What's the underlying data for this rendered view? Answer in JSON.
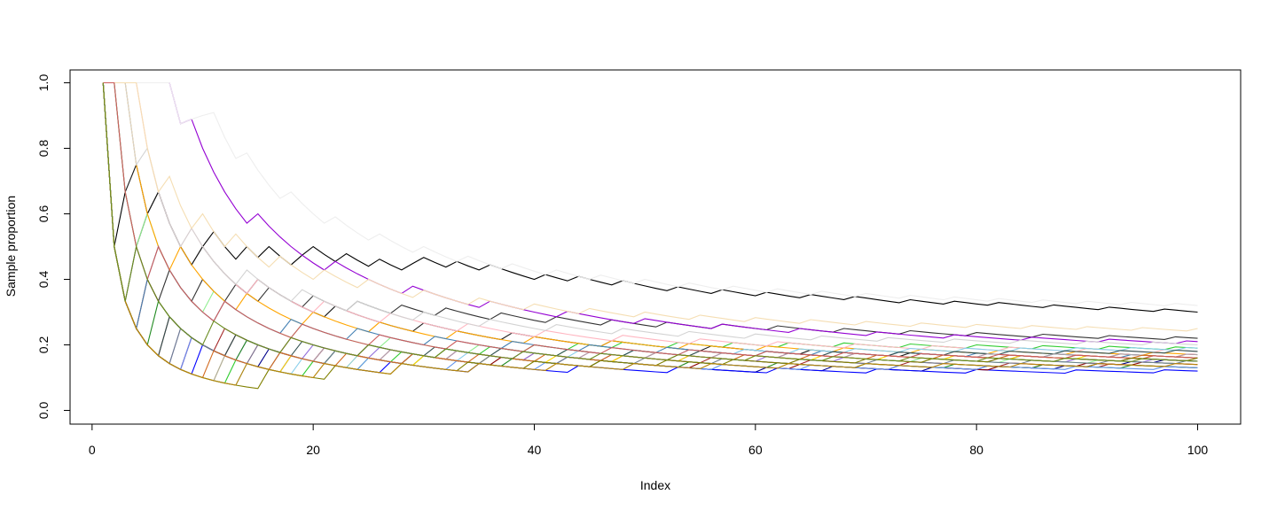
{
  "chart_data": {
    "type": "line",
    "title": "",
    "xlabel": "Index",
    "ylabel": "Sample proportion",
    "xlim": [
      1,
      100
    ],
    "ylim": [
      0,
      1
    ],
    "x_ticks": [
      0,
      20,
      40,
      60,
      80,
      100
    ],
    "y_ticks": [
      0.0,
      0.2,
      0.4,
      0.6,
      0.8,
      1.0
    ],
    "x_tick_labels": [
      "0",
      "20",
      "40",
      "60",
      "80",
      "100"
    ],
    "y_tick_labels": [
      "0.0",
      "0.2",
      "0.4",
      "0.6",
      "0.8",
      "1.0"
    ],
    "grid": false,
    "legend": "none",
    "x": [
      1,
      2,
      3,
      4,
      5,
      6,
      7,
      8,
      9,
      10,
      11,
      12,
      13,
      14,
      15,
      16,
      17,
      18,
      19,
      20,
      21,
      22,
      23,
      24,
      25,
      26,
      27,
      28,
      29,
      30,
      31,
      32,
      33,
      34,
      35,
      36,
      37,
      38,
      39,
      40,
      41,
      42,
      43,
      44,
      45,
      46,
      47,
      48,
      49,
      50,
      51,
      52,
      53,
      54,
      55,
      56,
      57,
      58,
      59,
      60,
      61,
      62,
      63,
      64,
      65,
      66,
      67,
      68,
      69,
      70,
      71,
      72,
      73,
      74,
      75,
      76,
      77,
      78,
      79,
      80,
      81,
      82,
      83,
      84,
      85,
      86,
      87,
      88,
      89,
      90,
      91,
      92,
      93,
      94,
      95,
      96,
      97,
      98,
      99,
      100
    ],
    "series": [
      {
        "color": "#000000",
        "success_indices": [
          1,
          3,
          5,
          6,
          10,
          11,
          14,
          16,
          19,
          20,
          23,
          26,
          29,
          30,
          33,
          36,
          41,
          44,
          48,
          53,
          57,
          61,
          65,
          69,
          74,
          78,
          82,
          87,
          92,
          97
        ]
      },
      {
        "color": "#1a1a1a",
        "success_indices": [
          1,
          2,
          4,
          6,
          10,
          15,
          22,
          30,
          38,
          47,
          56,
          65,
          74,
          84,
          94
        ]
      },
      {
        "color": "#333333",
        "success_indices": [
          1,
          4,
          7,
          10,
          13,
          16,
          20,
          24,
          28,
          32,
          37,
          42,
          47,
          52,
          57,
          62,
          68,
          74,
          80,
          86,
          92,
          98
        ]
      },
      {
        "color": "#00008b",
        "success_indices": [
          1,
          9,
          16,
          22,
          29,
          36,
          43,
          61,
          67,
          76,
          81,
          88,
          91,
          94,
          97
        ]
      },
      {
        "color": "#0000ff",
        "success_indices": [
          1,
          10,
          18,
          27,
          35,
          44,
          53,
          62,
          71,
          80,
          89,
          97
        ]
      },
      {
        "color": "#8b0000",
        "success_indices": [
          1,
          5,
          13,
          21,
          29,
          37,
          46,
          55,
          64,
          73,
          82,
          86,
          90,
          95
        ]
      },
      {
        "color": "#a52a2a",
        "success_indices": [
          1,
          7,
          12,
          18,
          25,
          32,
          40,
          48,
          56,
          65,
          74,
          83,
          92
        ]
      },
      {
        "color": "#9400d3",
        "success_indices": [
          1,
          2,
          3,
          4,
          5,
          6,
          7,
          9,
          15,
          22,
          29,
          36,
          43,
          50,
          57,
          64,
          71,
          78,
          85,
          92,
          99
        ]
      },
      {
        "color": "#9370db",
        "success_indices": [
          1,
          8,
          14,
          20,
          26,
          33,
          40,
          47,
          54,
          61,
          68,
          75,
          82,
          89,
          96
        ]
      },
      {
        "color": "#228b22",
        "success_indices": [
          1,
          6,
          14,
          22,
          30,
          38,
          46,
          54,
          62,
          70,
          78,
          86,
          94
        ]
      },
      {
        "color": "#32cd32",
        "success_indices": [
          1,
          13,
          20,
          25,
          28,
          32,
          36,
          40,
          44,
          48,
          53,
          58,
          63,
          68,
          74,
          80,
          86,
          92,
          98
        ]
      },
      {
        "color": "#90ee90",
        "success_indices": [
          1,
          2,
          5,
          11,
          19,
          27,
          35,
          43,
          51,
          59,
          67,
          75,
          83,
          91,
          99
        ]
      },
      {
        "color": "#ffa500",
        "success_indices": [
          1,
          2,
          3,
          8,
          14,
          20,
          26,
          33,
          40,
          47,
          54,
          61,
          68,
          75,
          82,
          89,
          96
        ]
      },
      {
        "color": "#ffd700",
        "success_indices": [
          1,
          12,
          18,
          24,
          30,
          36,
          42,
          48,
          54,
          60,
          66,
          72,
          78,
          84,
          90,
          96
        ]
      },
      {
        "color": "#ff1493",
        "success_indices": [
          1,
          9,
          15,
          21,
          27,
          33,
          39,
          45,
          51,
          57,
          63,
          69,
          75,
          81,
          87,
          93,
          99
        ]
      },
      {
        "color": "#ffb6c1",
        "success_indices": [
          1,
          2,
          3,
          4,
          9,
          15,
          21,
          27,
          34,
          41,
          48,
          55,
          62,
          69,
          76,
          83,
          90,
          97
        ]
      },
      {
        "color": "#4682b4",
        "success_indices": [
          1,
          5,
          6,
          12,
          18,
          24,
          31,
          38,
          45,
          52,
          59,
          66,
          73,
          80,
          87,
          94
        ]
      },
      {
        "color": "#87ceeb",
        "success_indices": [
          1,
          14,
          19,
          24,
          29,
          34,
          39,
          44,
          49,
          54,
          59,
          64,
          69,
          74,
          79,
          84,
          89,
          94,
          99
        ]
      },
      {
        "color": "#6495ed",
        "success_indices": [
          1,
          9,
          17,
          25,
          33,
          41,
          49,
          57,
          65,
          73,
          81,
          89,
          97
        ]
      },
      {
        "color": "#2f4f4f",
        "success_indices": [
          1,
          7,
          13,
          19,
          25,
          31,
          37,
          43,
          49,
          55,
          61,
          67,
          73,
          78,
          83,
          88,
          93,
          98
        ]
      },
      {
        "color": "#708090",
        "success_indices": [
          1,
          8,
          15,
          22,
          29,
          36,
          43,
          50,
          57,
          64,
          71,
          78,
          85,
          92,
          99
        ]
      },
      {
        "color": "#a9a9a9",
        "success_indices": [
          1,
          12,
          17,
          21,
          27,
          33,
          39,
          45,
          51,
          57,
          63,
          69,
          75,
          81,
          87,
          93,
          99
        ]
      },
      {
        "color": "#d3d3d3",
        "success_indices": [
          1,
          2,
          3,
          5,
          9,
          14,
          19,
          24,
          30,
          36,
          42,
          48,
          54,
          60,
          66,
          72,
          78,
          84,
          90,
          96
        ]
      },
      {
        "color": "#eeeeee",
        "success_indices": [
          1,
          2,
          3,
          4,
          5,
          6,
          7,
          9,
          10,
          11,
          14,
          18,
          22,
          26,
          30,
          34,
          38,
          42,
          46,
          50,
          54,
          58,
          62,
          66,
          70,
          74,
          78,
          82,
          86,
          90,
          94,
          98
        ]
      },
      {
        "color": "#f5deb3",
        "success_indices": [
          1,
          2,
          3,
          4,
          7,
          10,
          13,
          17,
          21,
          25,
          30,
          35,
          40,
          45,
          50,
          55,
          60,
          65,
          70,
          75,
          80,
          85,
          90,
          95,
          100
        ]
      },
      {
        "color": "#d2691e",
        "success_indices": [
          1,
          11,
          17,
          23,
          29,
          35,
          41,
          47,
          53,
          59,
          65,
          71,
          77,
          83,
          89,
          95
        ]
      },
      {
        "color": "#cd5c5c",
        "success_indices": [
          1,
          2,
          6,
          12,
          19,
          26,
          33,
          40,
          47,
          54,
          61,
          68,
          75,
          82,
          89,
          96
        ]
      },
      {
        "color": "#808000",
        "success_indices": [
          1,
          16,
          22,
          28,
          34,
          40,
          46,
          52,
          58,
          64,
          70,
          76,
          82,
          88,
          94,
          100
        ]
      },
      {
        "color": "#b8860b",
        "success_indices": [
          1,
          14,
          21,
          28,
          35,
          42,
          49,
          56,
          63,
          70,
          77,
          84,
          91,
          98
        ]
      },
      {
        "color": "#6b8e23",
        "success_indices": [
          1,
          4,
          11,
          18,
          25,
          32,
          39,
          46,
          53,
          60,
          67,
          74,
          81,
          88,
          95
        ]
      }
    ]
  }
}
